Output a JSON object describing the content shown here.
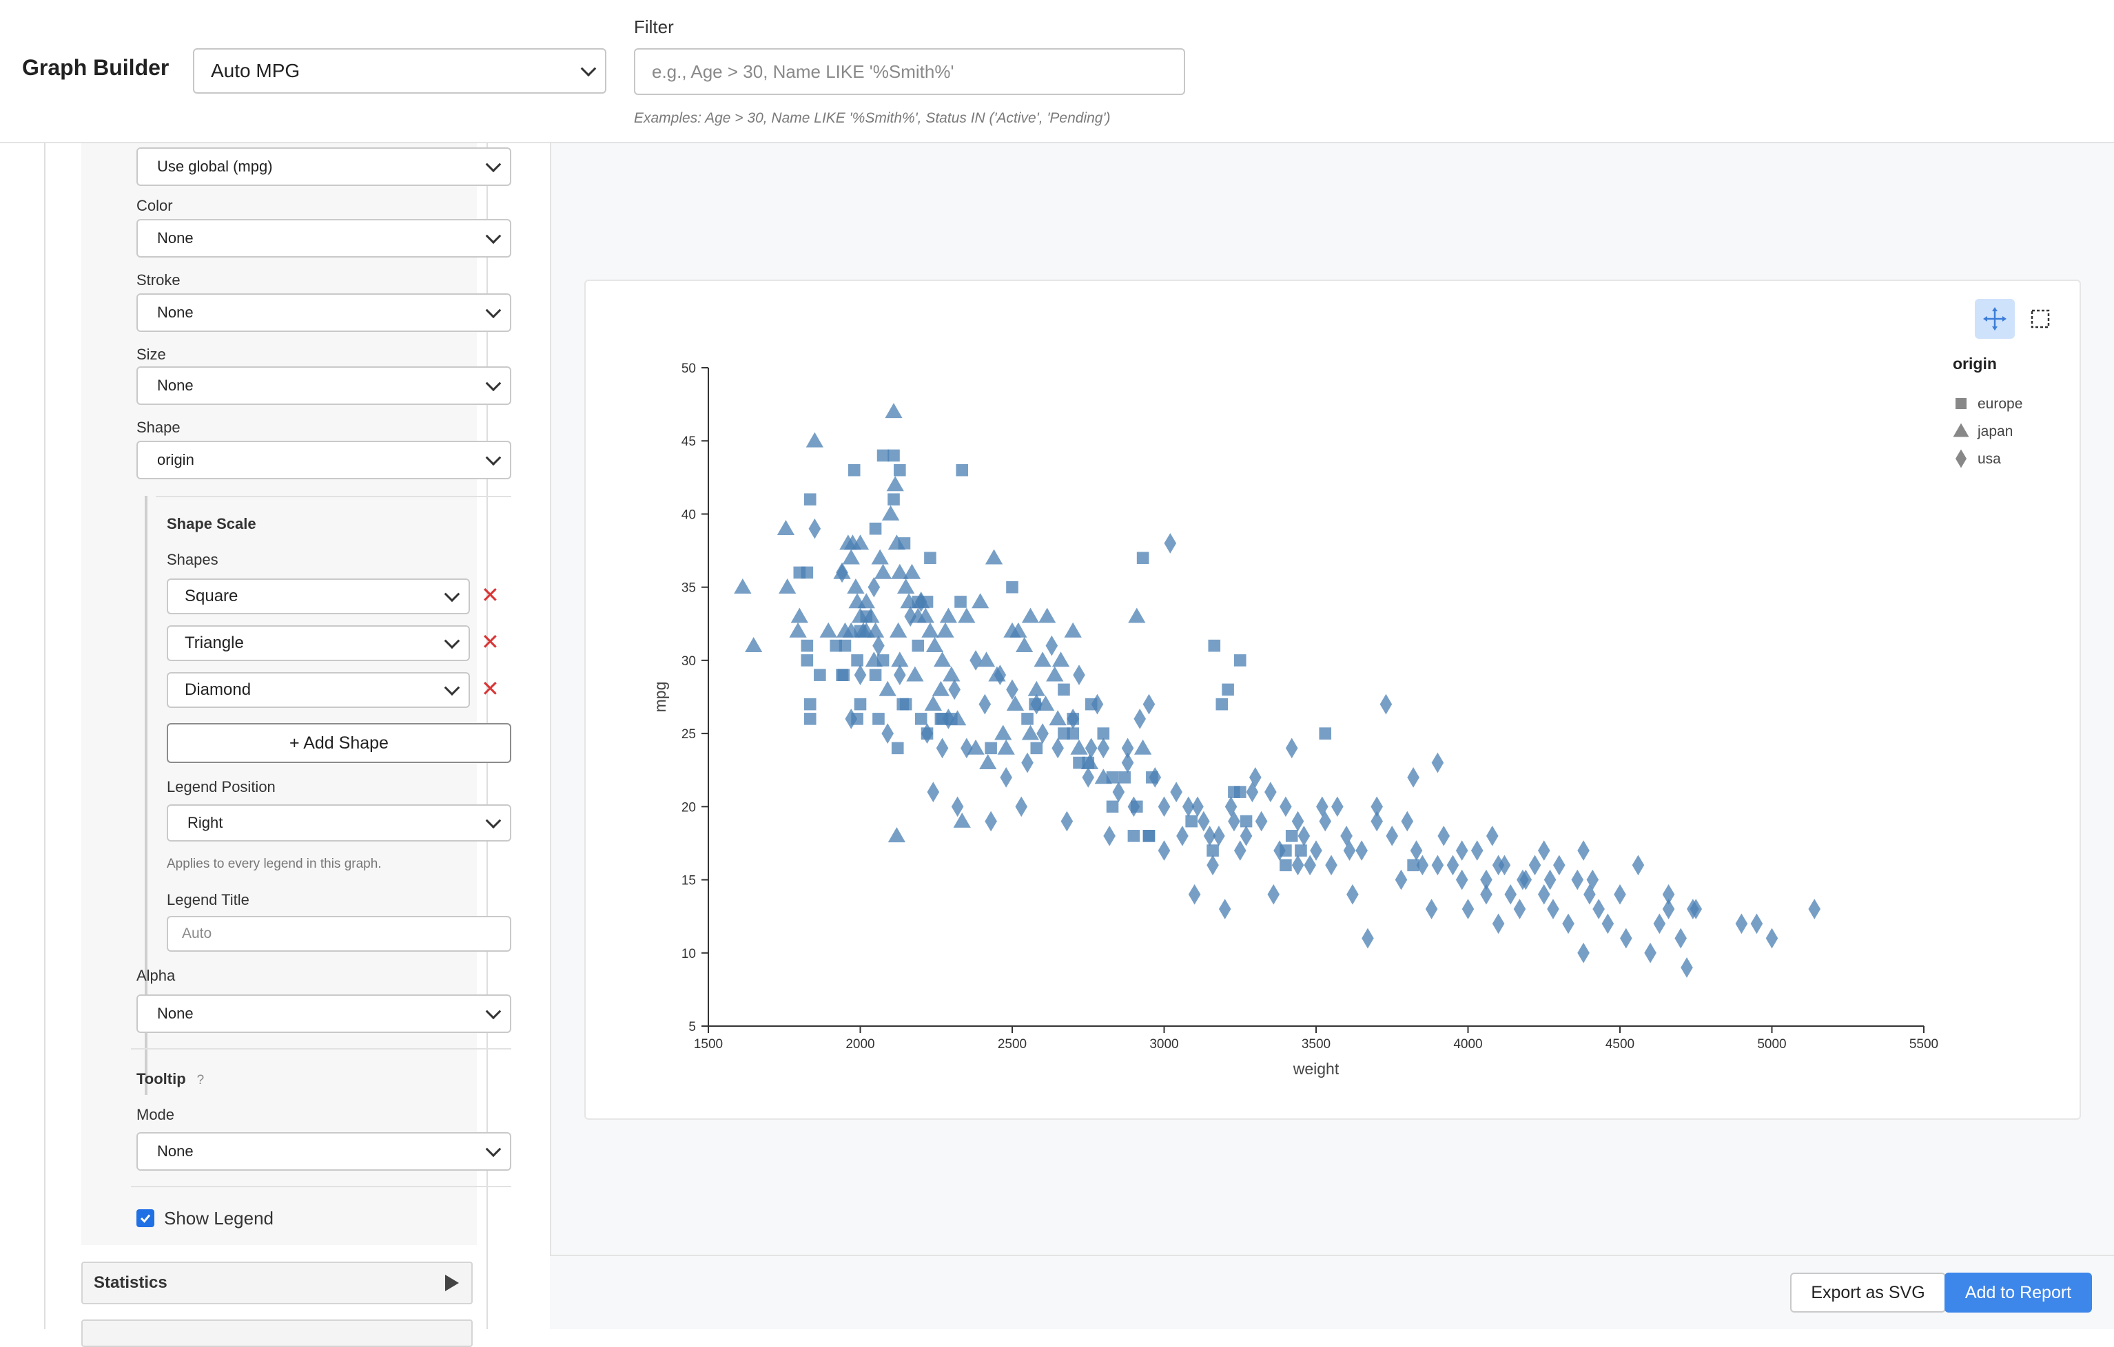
{
  "header": {
    "title": "Graph Builder",
    "dataset": "Auto MPG",
    "filter_label": "Filter",
    "filter_placeholder": "e.g., Age > 30, Name LIKE '%Smith%'",
    "filter_hint": "Examples: Age > 30, Name LIKE '%Smith%', Status IN ('Active', 'Pending')"
  },
  "panel": {
    "y_select": "Use global (mpg)",
    "color_label": "Color",
    "color_value": "None",
    "stroke_label": "Stroke",
    "stroke_value": "None",
    "size_label": "Size",
    "size_value": "None",
    "shape_label": "Shape",
    "shape_value": "origin",
    "shape_scale_title": "Shape Scale",
    "shapes_label": "Shapes",
    "shapes": [
      "Square",
      "Triangle",
      "Diamond"
    ],
    "remove_glyph": "✕",
    "add_shape_label": "+ Add Shape",
    "legend_position_label": "Legend Position",
    "legend_position_value": "Right",
    "legend_hint": "Applies to every legend in this graph.",
    "legend_title_label": "Legend Title",
    "legend_title_placeholder": "Auto",
    "alpha_label": "Alpha",
    "alpha_value": "None",
    "tooltip_label": "Tooltip",
    "tooltip_help": "?",
    "mode_label": "Mode",
    "mode_value": "None",
    "show_legend_label": "Show Legend",
    "show_legend_checked": true,
    "statistics_label": "Statistics"
  },
  "actions": {
    "export_label": "Export as SVG",
    "add_label": "Add to Report"
  },
  "icons": {
    "pan": "pan-move-icon",
    "select": "box-select-icon"
  },
  "colors": {
    "accent": "#3d86ea",
    "point": "#4a7fb3",
    "remove": "#d93636"
  },
  "chart_data": {
    "type": "scatter",
    "xlabel": "weight",
    "ylabel": "mpg",
    "xlim": [
      1500,
      5500
    ],
    "ylim": [
      5,
      50
    ],
    "xticks": [
      1500,
      2000,
      2500,
      3000,
      3500,
      4000,
      4500,
      5000,
      5500
    ],
    "yticks": [
      5,
      10,
      15,
      20,
      25,
      30,
      35,
      40,
      45,
      50
    ],
    "legend": {
      "title": "origin",
      "position": "right",
      "entries": [
        {
          "name": "europe",
          "shape": "square"
        },
        {
          "name": "japan",
          "shape": "triangle"
        },
        {
          "name": "usa",
          "shape": "diamond"
        }
      ]
    },
    "series": [
      {
        "name": "europe",
        "shape": "square",
        "points": [
          [
            1835,
            26
          ],
          [
            1835,
            27
          ],
          [
            1825,
            31
          ],
          [
            1800,
            36
          ],
          [
            1825,
            36
          ],
          [
            1825,
            30
          ],
          [
            1867,
            29
          ],
          [
            1980,
            43
          ],
          [
            2075,
            44
          ],
          [
            2110,
            44
          ],
          [
            2130,
            43
          ],
          [
            2335,
            43
          ],
          [
            1835,
            41
          ],
          [
            1950,
            31
          ],
          [
            1945,
            29
          ],
          [
            1990,
            30
          ],
          [
            2050,
            29
          ],
          [
            2075,
            30
          ],
          [
            2190,
            34
          ],
          [
            2200,
            26
          ],
          [
            2140,
            27
          ],
          [
            2150,
            27
          ],
          [
            2123,
            24
          ],
          [
            2220,
            25
          ],
          [
            2265,
            26
          ],
          [
            2270,
            26
          ],
          [
            2300,
            26
          ],
          [
            2330,
            34
          ],
          [
            2430,
            24
          ],
          [
            2500,
            35
          ],
          [
            2575,
            27
          ],
          [
            2670,
            25
          ],
          [
            2700,
            25
          ],
          [
            2760,
            27
          ],
          [
            2830,
            20
          ],
          [
            2900,
            18
          ],
          [
            2930,
            37
          ],
          [
            2950,
            18
          ],
          [
            2960,
            22
          ],
          [
            3165,
            31
          ],
          [
            3190,
            27
          ],
          [
            3210,
            28
          ],
          [
            3250,
            30
          ],
          [
            3400,
            16
          ],
          [
            3530,
            25
          ],
          [
            3820,
            16
          ],
          [
            2190,
            31
          ],
          [
            2110,
            41
          ],
          [
            2000,
            27
          ],
          [
            2020,
            33
          ],
          [
            2145,
            38
          ],
          [
            2220,
            34
          ],
          [
            2050,
            39
          ],
          [
            1920,
            31
          ],
          [
            1940,
            29
          ],
          [
            2000,
            32
          ],
          [
            2060,
            26
          ],
          [
            1990,
            26
          ],
          [
            2230,
            37
          ],
          [
            2550,
            26
          ],
          [
            2670,
            28
          ],
          [
            2700,
            26
          ],
          [
            3090,
            19
          ],
          [
            3160,
            17
          ],
          [
            3230,
            21
          ],
          [
            3250,
            21
          ],
          [
            3270,
            19
          ],
          [
            3420,
            18
          ],
          [
            3450,
            17
          ],
          [
            3400,
            17
          ],
          [
            2950,
            18
          ],
          [
            2910,
            20
          ],
          [
            2870,
            22
          ],
          [
            2800,
            25
          ],
          [
            2830,
            22
          ],
          [
            2750,
            23
          ],
          [
            2580,
            24
          ],
          [
            2720,
            23
          ]
        ]
      },
      {
        "name": "japan",
        "shape": "triangle",
        "points": [
          [
            1613,
            35
          ],
          [
            1649,
            31
          ],
          [
            1755,
            39
          ],
          [
            1760,
            35
          ],
          [
            1795,
            32
          ],
          [
            1800,
            33
          ],
          [
            1850,
            45
          ],
          [
            1895,
            32
          ],
          [
            1950,
            32
          ],
          [
            1970,
            37
          ],
          [
            1975,
            38
          ],
          [
            1985,
            35
          ],
          [
            1990,
            34
          ],
          [
            2000,
            38
          ],
          [
            2020,
            34
          ],
          [
            2035,
            33
          ],
          [
            2050,
            32
          ],
          [
            2065,
            37
          ],
          [
            2075,
            36
          ],
          [
            2100,
            40
          ],
          [
            2110,
            47
          ],
          [
            2115,
            42
          ],
          [
            2120,
            38
          ],
          [
            2125,
            32
          ],
          [
            2130,
            36
          ],
          [
            2150,
            35
          ],
          [
            2170,
            36
          ],
          [
            2190,
            33
          ],
          [
            2200,
            34
          ],
          [
            2215,
            33
          ],
          [
            2230,
            32
          ],
          [
            2245,
            31
          ],
          [
            2265,
            28
          ],
          [
            2280,
            32
          ],
          [
            2290,
            33
          ],
          [
            2300,
            29
          ],
          [
            2335,
            19
          ],
          [
            2350,
            33
          ],
          [
            2395,
            34
          ],
          [
            2415,
            30
          ],
          [
            2440,
            37
          ],
          [
            2450,
            29
          ],
          [
            2480,
            24
          ],
          [
            2500,
            32
          ],
          [
            2520,
            32
          ],
          [
            2540,
            31
          ],
          [
            2560,
            33
          ],
          [
            2580,
            28
          ],
          [
            2600,
            30
          ],
          [
            2615,
            33
          ],
          [
            2640,
            29
          ],
          [
            2660,
            30
          ],
          [
            2700,
            32
          ],
          [
            2720,
            24
          ],
          [
            2755,
            23
          ],
          [
            2800,
            22
          ],
          [
            2910,
            33
          ],
          [
            2930,
            24
          ],
          [
            2120,
            18
          ],
          [
            1970,
            32
          ],
          [
            2010,
            32
          ],
          [
            2045,
            30
          ],
          [
            2090,
            28
          ],
          [
            2130,
            30
          ],
          [
            2180,
            29
          ],
          [
            2240,
            27
          ],
          [
            2320,
            26
          ],
          [
            2380,
            24
          ],
          [
            2420,
            23
          ],
          [
            2470,
            25
          ],
          [
            2510,
            27
          ],
          [
            2560,
            25
          ],
          [
            2610,
            27
          ],
          [
            2650,
            26
          ],
          [
            1940,
            36
          ],
          [
            1960,
            38
          ],
          [
            2000,
            33
          ],
          [
            2020,
            32
          ],
          [
            2160,
            34
          ],
          [
            2270,
            30
          ]
        ]
      },
      {
        "name": "usa",
        "shape": "diamond",
        "points": [
          [
            1850,
            39
          ],
          [
            1940,
            36
          ],
          [
            1970,
            26
          ],
          [
            2000,
            29
          ],
          [
            2045,
            35
          ],
          [
            2060,
            31
          ],
          [
            2090,
            25
          ],
          [
            2130,
            29
          ],
          [
            2165,
            33
          ],
          [
            2200,
            34
          ],
          [
            2220,
            25
          ],
          [
            2240,
            21
          ],
          [
            2270,
            24
          ],
          [
            2290,
            26
          ],
          [
            2310,
            28
          ],
          [
            2320,
            20
          ],
          [
            2350,
            24
          ],
          [
            2380,
            30
          ],
          [
            2410,
            27
          ],
          [
            2430,
            19
          ],
          [
            2460,
            29
          ],
          [
            2480,
            22
          ],
          [
            2500,
            28
          ],
          [
            2530,
            20
          ],
          [
            2550,
            23
          ],
          [
            2580,
            27
          ],
          [
            2600,
            25
          ],
          [
            2630,
            31
          ],
          [
            2650,
            24
          ],
          [
            2680,
            19
          ],
          [
            2700,
            26
          ],
          [
            2720,
            29
          ],
          [
            2750,
            22
          ],
          [
            2780,
            27
          ],
          [
            2800,
            24
          ],
          [
            2820,
            18
          ],
          [
            2850,
            21
          ],
          [
            2880,
            23
          ],
          [
            2900,
            20
          ],
          [
            2920,
            26
          ],
          [
            2950,
            27
          ],
          [
            2970,
            22
          ],
          [
            3000,
            20
          ],
          [
            3020,
            38
          ],
          [
            3040,
            21
          ],
          [
            3060,
            18
          ],
          [
            3080,
            20
          ],
          [
            3100,
            14
          ],
          [
            3130,
            19
          ],
          [
            3160,
            16
          ],
          [
            3180,
            18
          ],
          [
            3200,
            13
          ],
          [
            3220,
            20
          ],
          [
            3250,
            17
          ],
          [
            3270,
            18
          ],
          [
            3300,
            22
          ],
          [
            3320,
            19
          ],
          [
            3350,
            21
          ],
          [
            3380,
            17
          ],
          [
            3400,
            20
          ],
          [
            3420,
            24
          ],
          [
            3440,
            19
          ],
          [
            3460,
            18
          ],
          [
            3480,
            16
          ],
          [
            3500,
            17
          ],
          [
            3530,
            19
          ],
          [
            3550,
            16
          ],
          [
            3570,
            20
          ],
          [
            3600,
            18
          ],
          [
            3620,
            14
          ],
          [
            3650,
            17
          ],
          [
            3670,
            11
          ],
          [
            3700,
            20
          ],
          [
            3730,
            27
          ],
          [
            3750,
            18
          ],
          [
            3780,
            15
          ],
          [
            3800,
            19
          ],
          [
            3830,
            17
          ],
          [
            3850,
            16
          ],
          [
            3880,
            13
          ],
          [
            3900,
            23
          ],
          [
            3920,
            18
          ],
          [
            3950,
            16
          ],
          [
            3980,
            15
          ],
          [
            4000,
            13
          ],
          [
            4030,
            17
          ],
          [
            4060,
            15
          ],
          [
            4080,
            18
          ],
          [
            4100,
            12
          ],
          [
            4120,
            16
          ],
          [
            4140,
            14
          ],
          [
            4170,
            13
          ],
          [
            4190,
            15
          ],
          [
            4220,
            16
          ],
          [
            4250,
            14
          ],
          [
            4280,
            13
          ],
          [
            4300,
            16
          ],
          [
            4330,
            12
          ],
          [
            4360,
            15
          ],
          [
            4380,
            10
          ],
          [
            4400,
            14
          ],
          [
            4430,
            13
          ],
          [
            4460,
            12
          ],
          [
            4500,
            14
          ],
          [
            4520,
            11
          ],
          [
            4560,
            16
          ],
          [
            4600,
            10
          ],
          [
            4630,
            12
          ],
          [
            4660,
            13
          ],
          [
            4700,
            11
          ],
          [
            4720,
            9
          ],
          [
            4750,
            13
          ],
          [
            4900,
            12
          ],
          [
            4950,
            12
          ],
          [
            5000,
            11
          ],
          [
            5140,
            13
          ],
          [
            3360,
            14
          ],
          [
            3110,
            20
          ],
          [
            3150,
            18
          ],
          [
            3230,
            19
          ],
          [
            3440,
            16
          ],
          [
            3610,
            17
          ],
          [
            3900,
            16
          ],
          [
            4060,
            14
          ],
          [
            4180,
            15
          ],
          [
            4270,
            15
          ],
          [
            4410,
            15
          ],
          [
            4660,
            14
          ],
          [
            4740,
            13
          ],
          [
            3000,
            17
          ],
          [
            3290,
            21
          ],
          [
            3520,
            20
          ],
          [
            3700,
            19
          ],
          [
            3820,
            22
          ],
          [
            3980,
            17
          ],
          [
            4100,
            16
          ],
          [
            4250,
            17
          ],
          [
            4380,
            17
          ],
          [
            2760,
            24
          ],
          [
            2880,
            24
          ]
        ]
      }
    ]
  }
}
